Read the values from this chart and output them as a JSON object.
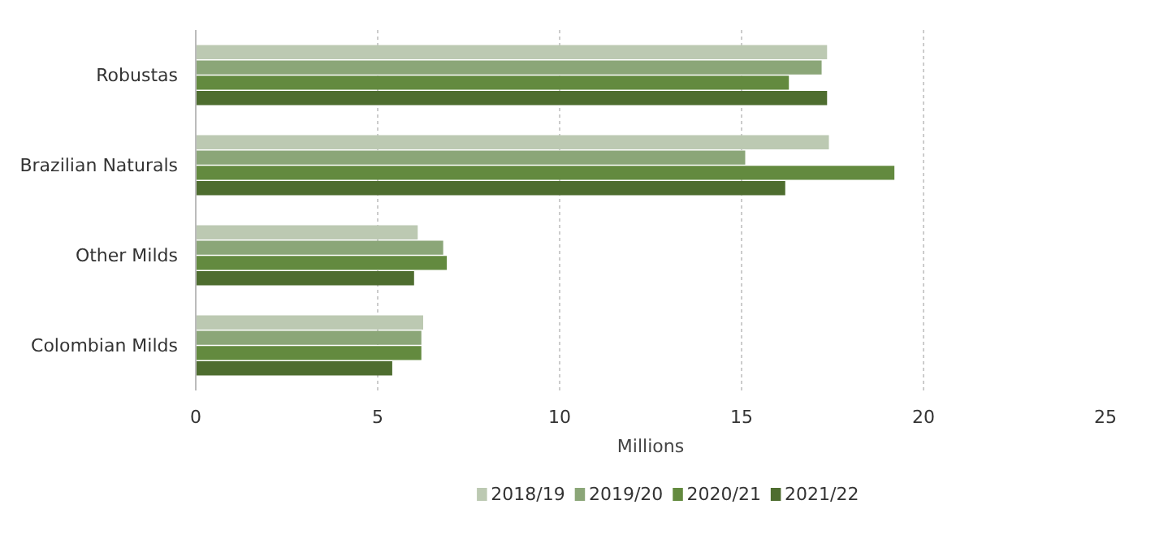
{
  "chart_data": {
    "type": "bar",
    "orientation": "horizontal",
    "xlabel": "Millions",
    "categories": [
      "Robustas",
      "Brazilian Naturals",
      "Other Milds",
      "Colombian Milds"
    ],
    "series": [
      {
        "name": "2018/19",
        "color": "#bcc9b2",
        "values": [
          17.35,
          17.4,
          6.1,
          6.25
        ]
      },
      {
        "name": "2019/20",
        "color": "#8ba678",
        "values": [
          17.2,
          15.1,
          6.8,
          6.2
        ]
      },
      {
        "name": "2020/21",
        "color": "#638a3f",
        "values": [
          16.3,
          19.2,
          6.9,
          6.2
        ]
      },
      {
        "name": "2021/22",
        "color": "#4e6d2f",
        "values": [
          17.35,
          16.2,
          6.0,
          5.4
        ]
      }
    ],
    "xlim": [
      0,
      25
    ],
    "xticks": [
      0,
      5,
      10,
      15,
      20,
      25
    ],
    "grid": "x",
    "legend": "bottom"
  }
}
